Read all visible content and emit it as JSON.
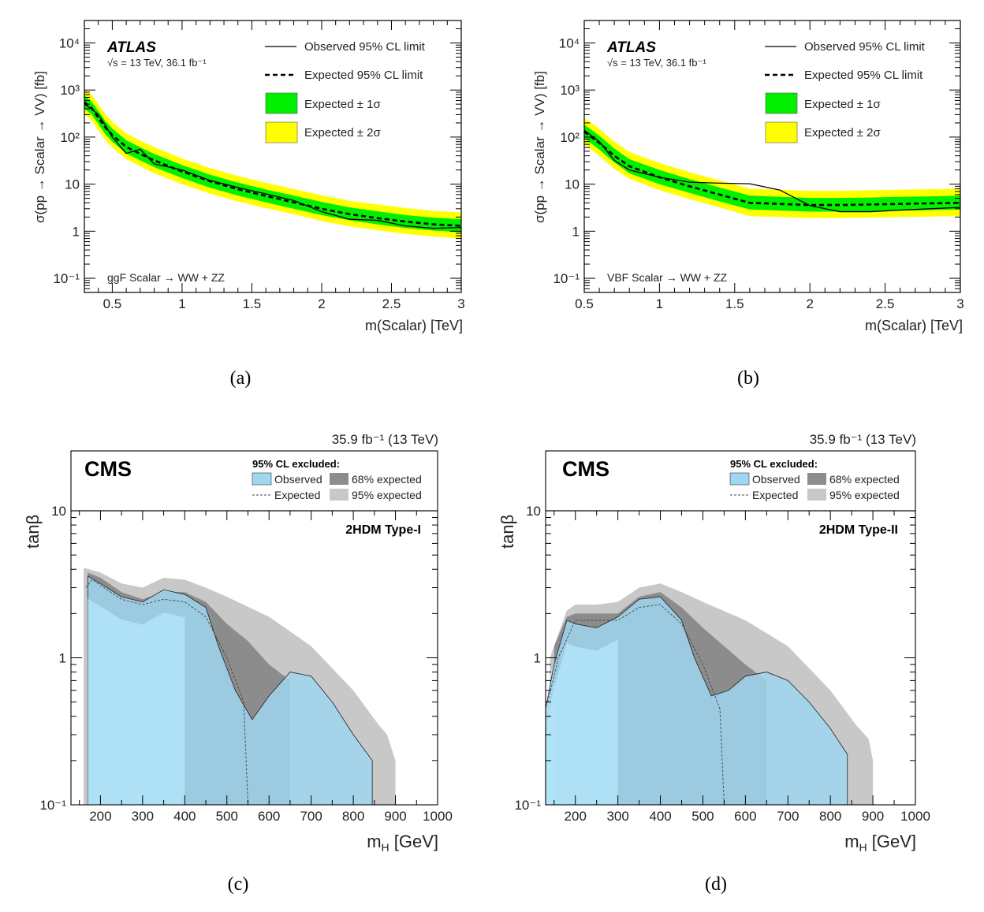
{
  "colors": {
    "green_band": "#00f000",
    "yellow_band": "#ffff00",
    "cms_obs": "#9fd6f0",
    "cms_light": "#b3e5fb",
    "cms_68": "#8c8c8c",
    "cms_95": "#c8c8c8"
  },
  "chart_data": [
    {
      "panel": "(a)",
      "type": "line",
      "experiment": "ATLAS",
      "energy_label": "√s = 13 TeV, 36.1 fb⁻¹",
      "channel_label": "ggF Scalar → WW + ZZ",
      "ylabel": "σ(pp → Scalar → VV)  [fb]",
      "xlabel": "m(Scalar)  [TeV]",
      "xlim": [
        0.3,
        3.0
      ],
      "ylim": [
        0.05,
        30000
      ],
      "yscale": "log",
      "x_ticks": [
        "0.5",
        "1",
        "1.5",
        "2",
        "2.5",
        "3"
      ],
      "y_ticks": [
        "10⁻¹",
        "1",
        "10",
        "10²",
        "10³",
        "10⁴"
      ],
      "legend": [
        "Observed 95% CL limit",
        "Expected 95% CL limit",
        "Expected ± 1σ",
        "Expected ± 2σ"
      ],
      "x": [
        0.3,
        0.35,
        0.4,
        0.45,
        0.5,
        0.6,
        0.7,
        0.8,
        1.0,
        1.2,
        1.4,
        1.6,
        1.8,
        2.0,
        2.2,
        2.4,
        2.6,
        2.8,
        3.0
      ],
      "series": [
        {
          "name": "Observed",
          "values": [
            500,
            400,
            300,
            180,
            100,
            45,
            55,
            27,
            20,
            12,
            8.5,
            6.2,
            4.5,
            2.6,
            1.8,
            1.7,
            1.3,
            1.15,
            1.2
          ]
        },
        {
          "name": "Expected",
          "values": [
            550,
            420,
            260,
            160,
            110,
            62,
            44,
            32,
            18.5,
            11.5,
            7.8,
            5.6,
            4.1,
            3.0,
            2.3,
            1.9,
            1.6,
            1.4,
            1.3
          ]
        },
        {
          "name": "band_2sigma_low",
          "values": [
            300,
            230,
            140,
            87,
            60,
            34,
            24,
            17,
            10,
            6.3,
            4.3,
            3.1,
            2.3,
            1.65,
            1.27,
            1.05,
            0.88,
            0.77,
            0.7
          ]
        },
        {
          "name": "band_1sigma_low",
          "values": [
            400,
            305,
            190,
            115,
            80,
            45,
            32,
            23,
            13.5,
            8.4,
            5.7,
            4.1,
            3.0,
            2.2,
            1.7,
            1.4,
            1.17,
            1.03,
            0.95
          ]
        },
        {
          "name": "band_1sigma_high",
          "values": [
            760,
            580,
            360,
            220,
            152,
            86,
            61,
            44,
            25.5,
            15.9,
            10.8,
            7.7,
            5.7,
            4.2,
            3.2,
            2.65,
            2.2,
            1.95,
            1.8
          ]
        },
        {
          "name": "band_2sigma_high",
          "values": [
            1050,
            800,
            500,
            305,
            210,
            119,
            84,
            61,
            35,
            22,
            14.9,
            10.7,
            7.9,
            5.8,
            4.4,
            3.7,
            3.1,
            2.7,
            2.5
          ]
        }
      ]
    },
    {
      "panel": "(b)",
      "type": "line",
      "experiment": "ATLAS",
      "energy_label": "√s = 13 TeV, 36.1 fb⁻¹",
      "channel_label": "VBF Scalar → WW + ZZ",
      "ylabel": "σ(pp → Scalar → VV)  [fb]",
      "xlabel": "m(Scalar)  [TeV]",
      "xlim": [
        0.5,
        3.0
      ],
      "ylim": [
        0.05,
        30000
      ],
      "yscale": "log",
      "x_ticks": [
        "0.5",
        "1",
        "1.5",
        "2",
        "2.5",
        "3"
      ],
      "y_ticks": [
        "10⁻¹",
        "1",
        "10",
        "10²",
        "10³",
        "10⁴"
      ],
      "legend": [
        "Observed 95% CL limit",
        "Expected 95% CL limit",
        "Expected ± 1σ",
        "Expected ± 2σ"
      ],
      "x": [
        0.5,
        0.6,
        0.7,
        0.8,
        1.0,
        1.2,
        1.4,
        1.6,
        1.8,
        2.0,
        2.2,
        2.4,
        2.6,
        2.8,
        3.0
      ],
      "series": [
        {
          "name": "Observed",
          "values": [
            140,
            80,
            32,
            20,
            14,
            11,
            10.5,
            10.2,
            7.5,
            3.5,
            2.6,
            2.6,
            2.8,
            3.0,
            3.2
          ]
        },
        {
          "name": "Expected",
          "values": [
            130,
            75,
            40,
            24,
            14,
            9.0,
            6.0,
            4.0,
            3.8,
            3.6,
            3.6,
            3.7,
            3.8,
            3.9,
            4.0
          ]
        },
        {
          "name": "band_2sigma_low",
          "values": [
            70,
            40,
            21,
            13,
            7.5,
            4.8,
            3.2,
            2.1,
            2.0,
            1.9,
            1.9,
            1.95,
            2.0,
            2.05,
            2.1
          ]
        },
        {
          "name": "band_1sigma_low",
          "values": [
            95,
            54,
            29,
            17,
            10,
            6.5,
            4.3,
            2.9,
            2.75,
            2.6,
            2.6,
            2.65,
            2.75,
            2.8,
            2.9
          ]
        },
        {
          "name": "band_1sigma_high",
          "values": [
            185,
            107,
            57,
            34,
            20,
            12.8,
            8.5,
            5.7,
            5.4,
            5.1,
            5.1,
            5.2,
            5.4,
            5.5,
            5.7
          ]
        },
        {
          "name": "band_2sigma_high",
          "values": [
            260,
            150,
            80,
            48,
            28,
            18,
            12,
            8.0,
            7.6,
            7.2,
            7.2,
            7.4,
            7.6,
            7.8,
            8.0
          ]
        }
      ]
    },
    {
      "panel": "(c)",
      "type": "area",
      "experiment": "CMS",
      "lumi_label": "35.9 fb⁻¹ (13 TeV)",
      "model_label": "2HDM Type-I",
      "legend_title": "95% CL excluded:",
      "legend": [
        "Observed",
        "68% expected",
        "Expected",
        "95% expected"
      ],
      "ylabel": "tanβ",
      "xlabel": "m_H [GeV]",
      "xlim": [
        130,
        1000
      ],
      "ylim": [
        0.1,
        10
      ],
      "yscale": "log",
      "x_ticks": [
        "200",
        "300",
        "400",
        "500",
        "600",
        "700",
        "800",
        "900",
        "1000"
      ],
      "y_ticks": [
        "10⁻¹",
        "1",
        "10"
      ],
      "regions": {
        "observed": {
          "x": [
            170,
            200,
            250,
            300,
            350,
            400,
            450,
            480,
            520,
            560,
            600,
            650,
            700,
            750,
            800,
            845
          ],
          "upper": [
            3.6,
            3.2,
            2.6,
            2.4,
            2.9,
            2.7,
            2.2,
            1.2,
            0.6,
            0.38,
            0.55,
            0.8,
            0.75,
            0.5,
            0.3,
            0.2
          ]
        },
        "expected_line": {
          "x": [
            165,
            180,
            250,
            300,
            350,
            400,
            450,
            500,
            540,
            550
          ],
          "upper": [
            3.0,
            3.4,
            2.5,
            2.3,
            2.5,
            2.4,
            1.9,
            1.0,
            0.5,
            0.1
          ]
        },
        "band_68_upper": {
          "x": [
            170,
            200,
            250,
            300,
            350,
            400,
            450,
            500,
            550,
            600,
            650
          ],
          "upper": [
            3.8,
            3.5,
            2.8,
            2.5,
            2.8,
            2.8,
            2.4,
            1.7,
            1.3,
            0.9,
            0.7
          ]
        },
        "band_95_upper": {
          "x": [
            160,
            200,
            250,
            300,
            350,
            400,
            450,
            500,
            600,
            700,
            800,
            860,
            880,
            900
          ],
          "upper": [
            4.1,
            3.8,
            3.2,
            3.0,
            3.5,
            3.4,
            3.0,
            2.6,
            1.9,
            1.2,
            0.6,
            0.35,
            0.3,
            0.2
          ]
        }
      }
    },
    {
      "panel": "(d)",
      "type": "area",
      "experiment": "CMS",
      "lumi_label": "35.9 fb⁻¹ (13 TeV)",
      "model_label": "2HDM Type-II",
      "legend_title": "95% CL excluded:",
      "legend": [
        "Observed",
        "68% expected",
        "Expected",
        "95% expected"
      ],
      "ylabel": "tanβ",
      "xlabel": "m_H [GeV]",
      "xlim": [
        130,
        1000
      ],
      "ylim": [
        0.1,
        10
      ],
      "yscale": "log",
      "x_ticks": [
        "200",
        "300",
        "400",
        "500",
        "600",
        "700",
        "800",
        "900",
        "1000"
      ],
      "y_ticks": [
        "10⁻¹",
        "1",
        "10"
      ],
      "regions": {
        "observed": {
          "x": [
            130,
            150,
            180,
            200,
            250,
            300,
            350,
            400,
            450,
            480,
            520,
            560,
            600,
            650,
            700,
            750,
            800,
            840
          ],
          "upper": [
            0.45,
            0.9,
            1.8,
            1.7,
            1.6,
            1.9,
            2.5,
            2.6,
            1.8,
            1.0,
            0.55,
            0.6,
            0.75,
            0.8,
            0.7,
            0.5,
            0.33,
            0.22
          ]
        },
        "expected_line": {
          "x": [
            135,
            160,
            200,
            250,
            300,
            350,
            400,
            450,
            500,
            540,
            550
          ],
          "upper": [
            0.5,
            1.0,
            1.8,
            1.8,
            1.8,
            2.2,
            2.3,
            1.7,
            0.9,
            0.45,
            0.1
          ]
        },
        "band_68_upper": {
          "x": [
            150,
            180,
            200,
            250,
            300,
            350,
            400,
            450,
            500,
            550,
            600,
            650
          ],
          "upper": [
            1.2,
            1.9,
            2.0,
            2.0,
            2.0,
            2.6,
            2.8,
            2.2,
            1.6,
            1.2,
            0.9,
            0.7
          ]
        },
        "band_95_upper": {
          "x": [
            140,
            180,
            200,
            250,
            300,
            350,
            400,
            450,
            500,
            600,
            700,
            800,
            860,
            890,
            900
          ],
          "upper": [
            1.0,
            2.1,
            2.3,
            2.3,
            2.4,
            3.0,
            3.2,
            2.8,
            2.4,
            1.8,
            1.2,
            0.6,
            0.35,
            0.28,
            0.2
          ]
        }
      }
    }
  ],
  "captions": {
    "a": "(a)",
    "b": "(b)",
    "c": "(c)",
    "d": "(d)"
  }
}
